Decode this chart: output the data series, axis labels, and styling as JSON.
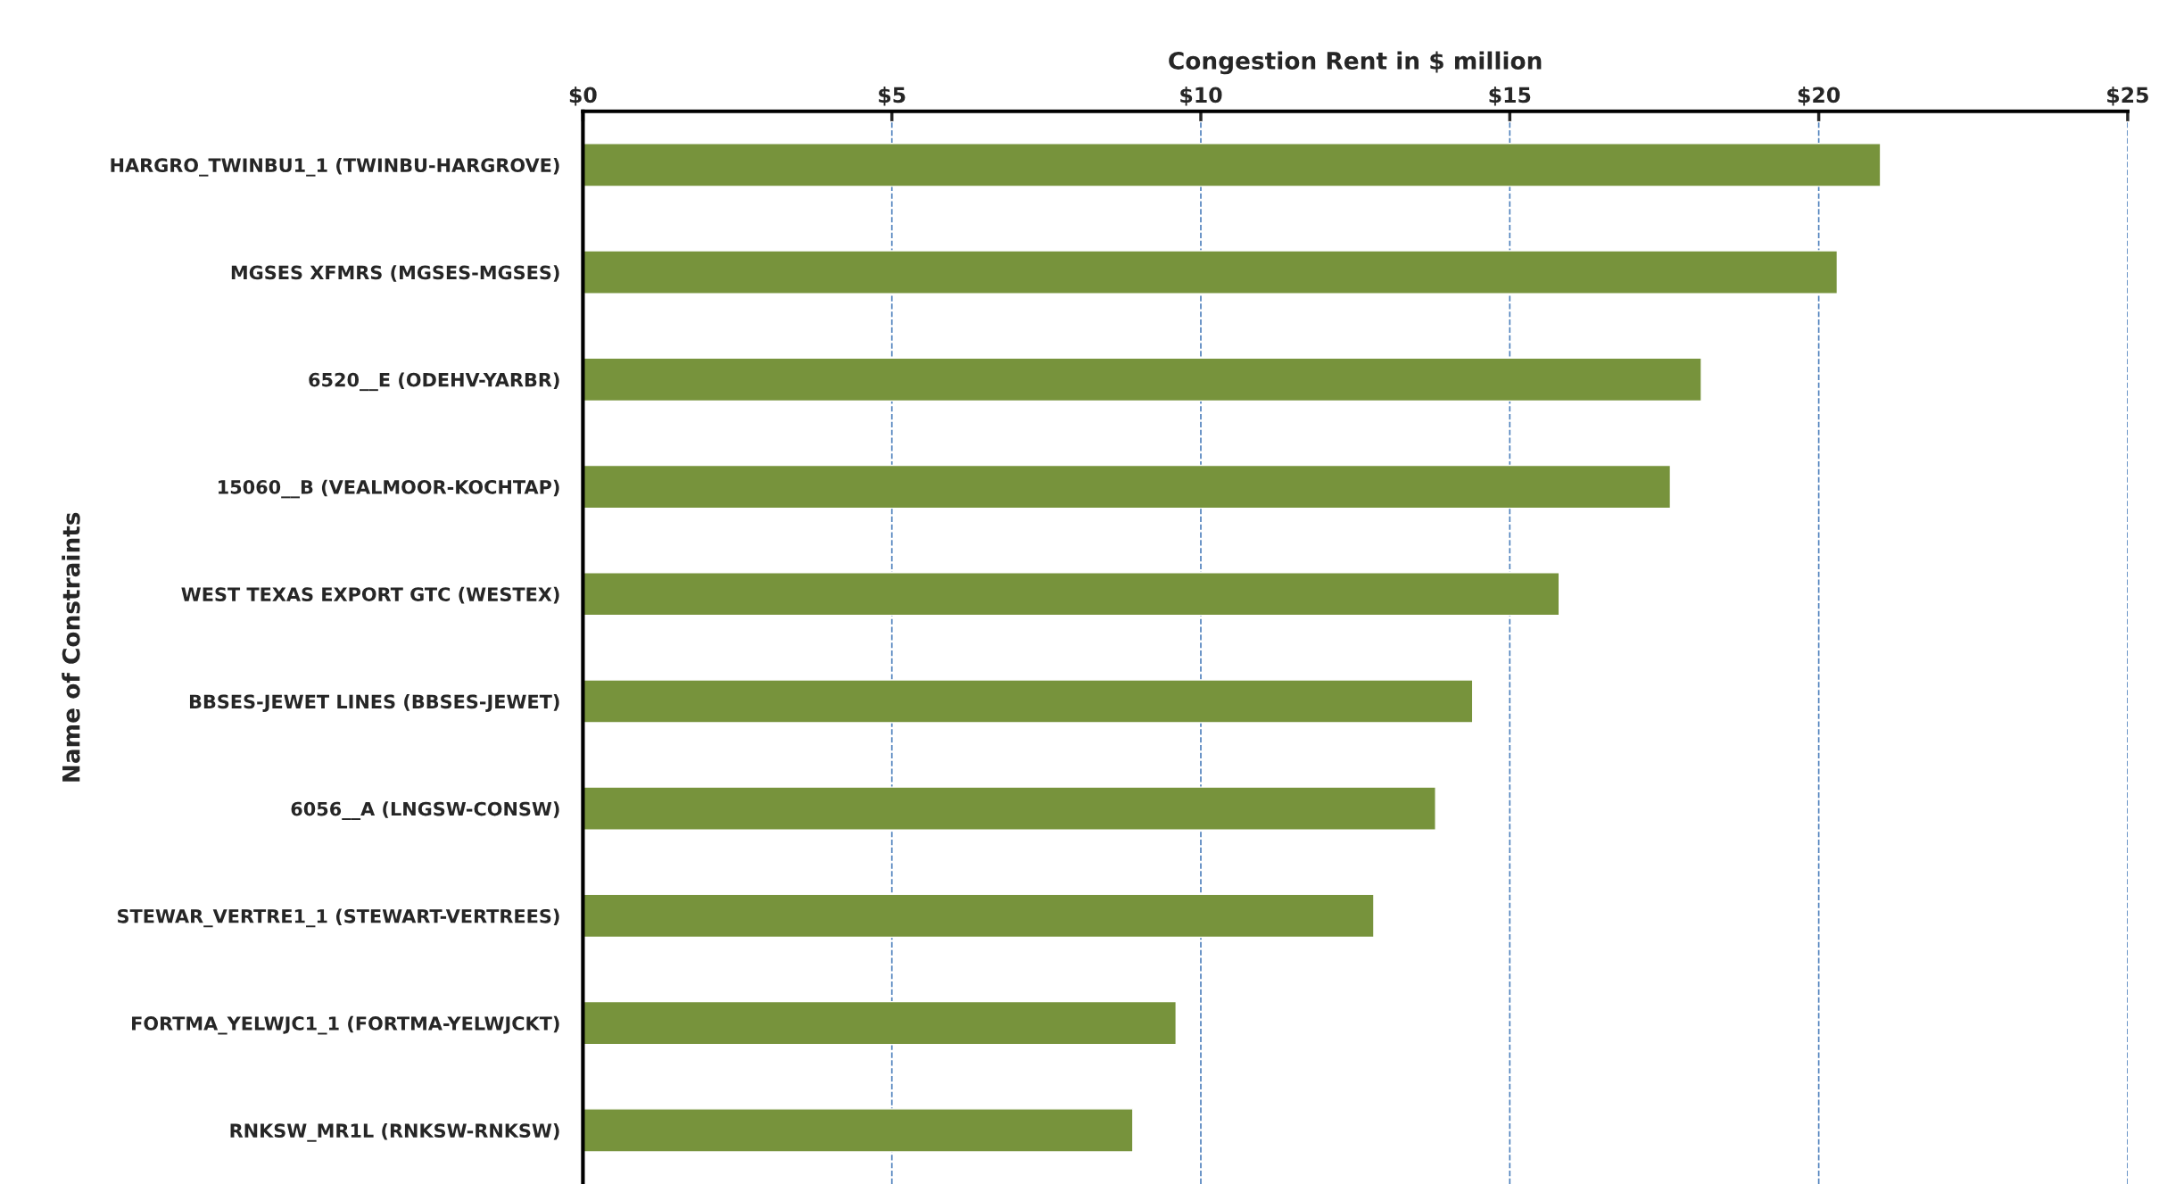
{
  "chart_data": {
    "type": "bar",
    "orientation": "horizontal",
    "xlabel": "Congestion Rent in $ million",
    "ylabel": "Name of Constraints",
    "categories": [
      "HARGRO_TWINBU1_1 (TWINBU-HARGROVE)",
      "MGSES XFMRS (MGSES-MGSES)",
      "6520__E (ODEHV-YARBR)",
      "15060__B (VEALMOOR-KOCHTAP)",
      "WEST TEXAS EXPORT GTC (WESTEX)",
      "BBSES-JEWET LINES (BBSES-JEWET)",
      "6056__A (LNGSW-CONSW)",
      "STEWAR_VERTRE1_1 (STEWART-VERTREES)",
      "FORTMA_YELWJC1_1 (FORTMA-YELWJCKT)",
      "RNKSW_MR1L (RNKSW-RNKSW)"
    ],
    "values": [
      21.0,
      20.3,
      18.1,
      17.6,
      15.8,
      14.4,
      13.8,
      12.8,
      9.6,
      8.9
    ],
    "color": "#77933c",
    "xlim": [
      0,
      25
    ],
    "xticks": [
      {
        "value": 0,
        "label": "$0"
      },
      {
        "value": 5,
        "label": "$5"
      },
      {
        "value": 10,
        "label": "$10"
      },
      {
        "value": 15,
        "label": "$15"
      },
      {
        "value": 20,
        "label": "$20"
      },
      {
        "value": 25,
        "label": "$25"
      }
    ],
    "grid": "x",
    "line_style": "dashed"
  }
}
